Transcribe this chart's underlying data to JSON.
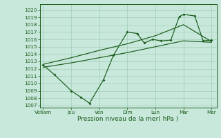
{
  "xlabel": "Pression niveau de la mer( hPa )",
  "bg_color": "#c8e8dc",
  "line_color": "#1a5c1a",
  "grid_color": "#a0ccb8",
  "tick_labels": [
    "Ve6am",
    "Jeu",
    "Ven",
    "Dim",
    "Lun",
    "Mar",
    "Mer"
  ],
  "tick_positions": [
    0,
    1,
    2,
    3,
    4,
    5,
    6
  ],
  "ylim": [
    1006.7,
    1020.8
  ],
  "yticks": [
    1007,
    1008,
    1009,
    1010,
    1011,
    1012,
    1013,
    1014,
    1015,
    1016,
    1017,
    1018,
    1019,
    1020
  ],
  "s1_x": [
    0,
    0.4,
    1.0,
    1.35,
    1.65,
    2.15,
    2.5,
    3.0,
    3.35,
    3.6,
    3.9,
    4.2,
    4.55,
    4.85,
    5.0,
    5.4,
    5.7,
    6.0
  ],
  "s1_y": [
    1012.5,
    1011.2,
    1009.0,
    1008.1,
    1007.3,
    1010.5,
    1013.8,
    1017.0,
    1016.8,
    1015.5,
    1016.0,
    1015.8,
    1015.9,
    1019.1,
    1019.4,
    1019.2,
    1015.8,
    1015.9
  ],
  "s2_x": [
    0,
    1,
    2,
    3,
    4,
    5,
    6
  ],
  "s2_y": [
    1012.6,
    1013.5,
    1014.5,
    1015.4,
    1016.5,
    1018.0,
    1015.7
  ],
  "s3_x": [
    0,
    1,
    2,
    3,
    4,
    5,
    6
  ],
  "s3_y": [
    1012.2,
    1012.8,
    1013.5,
    1014.2,
    1015.0,
    1015.8,
    1015.6
  ],
  "xlim": [
    -0.12,
    6.18
  ]
}
